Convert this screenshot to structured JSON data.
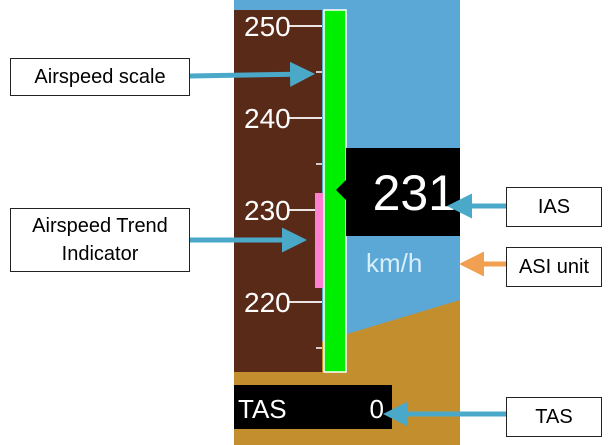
{
  "colors": {
    "sky": "#5ba8d6",
    "ground": "#c38f2e",
    "scale_bg": "#5a2a18",
    "speed_band": "#00ee00",
    "trend_bar": "#ff7fd0",
    "display_bg": "#000000",
    "scale_text": "#ffffff",
    "unit_text": "#d8eefb",
    "arrow_blue": "#4aa9c9",
    "arrow_orange": "#f0a050"
  },
  "airspeed_scale": {
    "tick_labels": [
      "250",
      "240",
      "230",
      "220"
    ]
  },
  "ias_display": {
    "value": "231"
  },
  "asi_unit": {
    "label": "km/h"
  },
  "tas_display": {
    "label": "TAS",
    "value": "0"
  },
  "callouts": {
    "airspeed_scale": "Airspeed scale",
    "trend_indicator_line1": "Airspeed Trend",
    "trend_indicator_line2": "Indicator",
    "ias": "IAS",
    "asi_unit": "ASI unit",
    "tas": "TAS"
  }
}
